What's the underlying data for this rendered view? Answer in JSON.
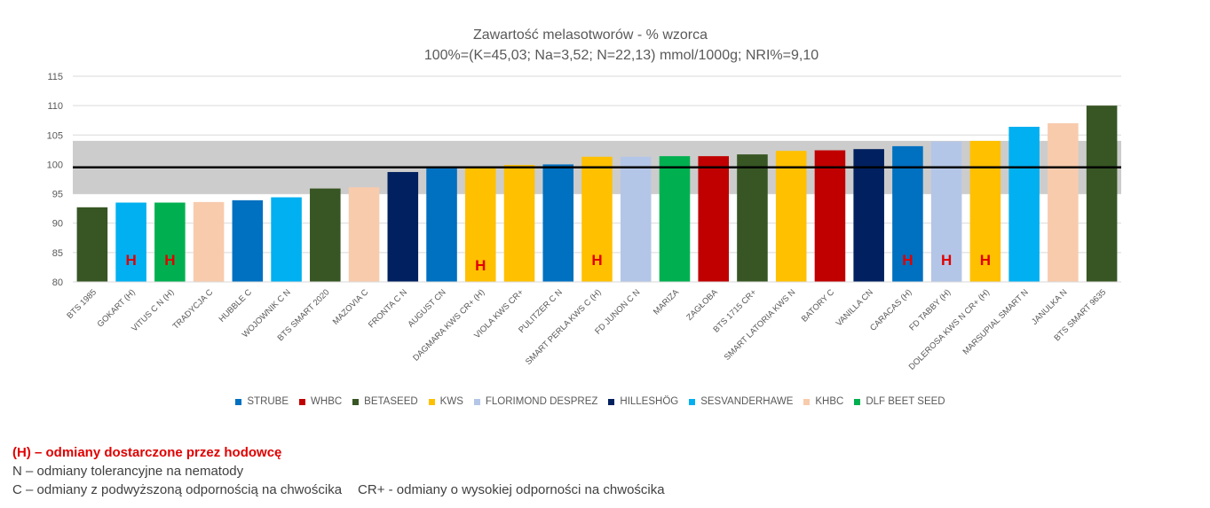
{
  "chart_data": {
    "type": "bar",
    "title": "Zawartość melasotworów - % wzorca",
    "subtitle": "100%=(K=45,03; Na=3,52; N=22,13) mmol/1000g; NRI%=9,10",
    "ylim": [
      80,
      115
    ],
    "yticks": [
      80,
      85,
      90,
      95,
      100,
      105,
      110,
      115
    ],
    "reference_line": 99.5,
    "band": [
      95,
      104
    ],
    "grid": true,
    "legend_position": "bottom",
    "categories": [
      "BTS 1985",
      "GOKART (H)",
      "VITUS C N (H)",
      "TRADYCJA C",
      "HUBBLE C",
      "WOJOWNIK C N",
      "BTS SMART 2020",
      "MAZOVIA C",
      "FRONTA C N",
      "AUGUST CN",
      "DAGMARA KWS CR+ (H)",
      "VIOLA KWS CR+",
      "PULITZER C N",
      "SMART PERLA KWS C (H)",
      "FD JUNON C N",
      "MARIZA",
      "ZAGŁOBA",
      "BTS 1715 CR+",
      "SMART LATORIA KWS N",
      "BATORY C",
      "VANILLA CN",
      "CARACAS (H)",
      "FD TABBY (H)",
      "DOLEROSA KWS N CR+ (H)",
      "MARSUPIAL SMART N",
      "JANULKA N",
      "BTS SMART 9635"
    ],
    "values": [
      92.7,
      93.5,
      93.5,
      93.6,
      93.9,
      94.4,
      95.9,
      96.1,
      98.7,
      99.3,
      99.6,
      99.9,
      100.0,
      101.3,
      101.3,
      101.4,
      101.4,
      101.7,
      102.3,
      102.4,
      102.6,
      103.1,
      103.9,
      104.0,
      106.4,
      107.0,
      110.0
    ],
    "breeders": [
      "BETASEED",
      "SESVANDERHAWE",
      "DLF BEET SEED",
      "KHBC",
      "STRUBE",
      "SESVANDERHAWE",
      "BETASEED",
      "KHBC",
      "HILLESHÖG",
      "STRUBE",
      "KWS",
      "KWS",
      "STRUBE",
      "KWS",
      "FLORIMOND DESPREZ",
      "DLF BEET SEED",
      "WHBC",
      "BETASEED",
      "KWS",
      "WHBC",
      "HILLESHÖG",
      "STRUBE",
      "FLORIMOND DESPREZ",
      "KWS",
      "SESVANDERHAWE",
      "KHBC",
      "BETASEED"
    ],
    "h_marker": "H",
    "h_flags": [
      false,
      true,
      true,
      false,
      false,
      false,
      false,
      false,
      false,
      false,
      true,
      false,
      false,
      true,
      false,
      false,
      false,
      false,
      false,
      false,
      false,
      true,
      true,
      true,
      false,
      false,
      false
    ],
    "legend": [
      {
        "name": "STRUBE",
        "color": "#0070c0"
      },
      {
        "name": "WHBC",
        "color": "#c00000"
      },
      {
        "name": "BETASEED",
        "color": "#375623"
      },
      {
        "name": "KWS",
        "color": "#ffc000"
      },
      {
        "name": "FLORIMOND DESPREZ",
        "color": "#b4c6e7"
      },
      {
        "name": "HILLESHÖG",
        "color": "#002060"
      },
      {
        "name": "SESVANDERHAWE",
        "color": "#00b0f0"
      },
      {
        "name": "KHBC",
        "color": "#f8cbad"
      },
      {
        "name": "DLF BEET SEED",
        "color": "#00b050"
      }
    ]
  },
  "notes": {
    "line1": "(H) – odmiany dostarczone przez hodowcę",
    "line2": "N – odmiany tolerancyjne na nematody",
    "line3a": "C – odmiany z podwyższoną odpornością na chwościka",
    "line3b": "CR+ - odmiany o wysokiej odporności na chwościka"
  }
}
